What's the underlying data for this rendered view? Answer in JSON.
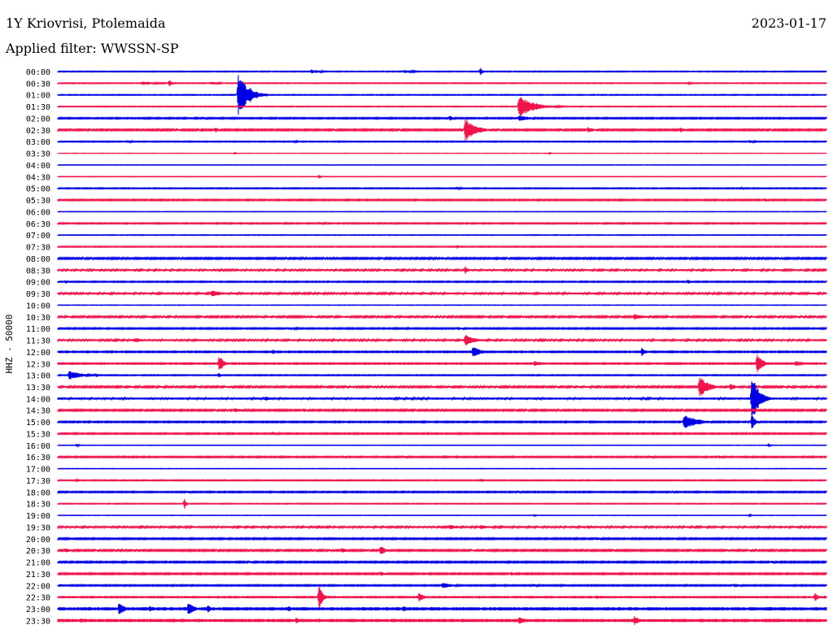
{
  "header": {
    "title": "1Y Kriovrisi, Ptolemaida",
    "date": "2023-01-17",
    "filter": "Applied filter: WWSSN-SP",
    "channel": "HHZ - 50000"
  },
  "colors": {
    "odd_trace": "#0000e6",
    "even_trace": "#f0144b",
    "text": "#000000",
    "background": "#ffffff"
  },
  "chart_data": {
    "type": "helicorder",
    "channel": "HHZ",
    "scale": 50000,
    "x_span_minutes": 30,
    "rows": [
      {
        "label": "00:00",
        "noise": 0.5,
        "events": [
          [
            33,
            2.5,
            12
          ],
          [
            45,
            2.0,
            14
          ],
          [
            55,
            6.0,
            2
          ]
        ]
      },
      {
        "label": "00:30",
        "noise": 0.5,
        "events": [
          [
            11,
            2.5,
            18
          ],
          [
            14.5,
            4.0,
            4
          ],
          [
            20,
            2.0,
            10
          ],
          [
            82,
            1.5,
            6
          ]
        ]
      },
      {
        "label": "01:00",
        "noise": 0.5,
        "events": [
          [
            23.5,
            26.0,
            12
          ],
          [
            25,
            10.0,
            6
          ]
        ]
      },
      {
        "label": "01:30",
        "noise": 0.5,
        "events": [
          [
            60,
            13.0,
            18
          ]
        ]
      },
      {
        "label": "02:00",
        "noise": 0.8,
        "events": [
          [
            19,
            2.0,
            6
          ],
          [
            51,
            3.0,
            6
          ],
          [
            60,
            3.5,
            16
          ]
        ]
      },
      {
        "label": "02:30",
        "noise": 1.0,
        "events": [
          [
            20.5,
            4.0,
            4
          ],
          [
            36,
            2.0,
            2
          ],
          [
            53,
            15.0,
            12
          ],
          [
            69,
            3.5,
            8
          ],
          [
            81,
            3.0,
            8
          ]
        ]
      },
      {
        "label": "03:00",
        "noise": 0.6,
        "events": [
          [
            9,
            2.0,
            6
          ],
          [
            31,
            1.5,
            4
          ],
          [
            90,
            2.0,
            8
          ]
        ]
      },
      {
        "label": "03:30",
        "noise": 0.2,
        "events": [
          [
            23,
            1.0,
            2
          ],
          [
            64,
            1.0,
            2
          ]
        ]
      },
      {
        "label": "04:00",
        "noise": 0.3,
        "events": []
      },
      {
        "label": "04:30",
        "noise": 0.3,
        "events": [
          [
            34,
            2.5,
            2
          ]
        ]
      },
      {
        "label": "05:00",
        "noise": 0.6,
        "events": [
          [
            52,
            1.5,
            8
          ],
          [
            89,
            1.5,
            6
          ]
        ]
      },
      {
        "label": "05:30",
        "noise": 0.8,
        "events": [
          [
            92,
            2.5,
            6
          ]
        ]
      },
      {
        "label": "06:00",
        "noise": 0.3,
        "events": []
      },
      {
        "label": "06:30",
        "noise": 0.7,
        "events": [
          [
            34,
            2.0,
            8
          ]
        ]
      },
      {
        "label": "07:00",
        "noise": 0.4,
        "events": []
      },
      {
        "label": "07:30",
        "noise": 0.6,
        "events": [
          [
            52,
            1.5,
            2
          ]
        ]
      },
      {
        "label": "08:00",
        "noise": 1.0,
        "events": [
          [
            50,
            2.0,
            6
          ]
        ]
      },
      {
        "label": "08:30",
        "noise": 1.2,
        "events": [
          [
            53,
            5.0,
            4
          ]
        ]
      },
      {
        "label": "09:00",
        "noise": 0.7,
        "events": [
          [
            1,
            2.0,
            2
          ],
          [
            82,
            2.5,
            4
          ]
        ]
      },
      {
        "label": "09:30",
        "noise": 1.2,
        "events": [
          [
            20,
            4.0,
            14
          ],
          [
            75,
            2.0,
            6
          ]
        ]
      },
      {
        "label": "10:00",
        "noise": 0.3,
        "events": []
      },
      {
        "label": "10:30",
        "noise": 1.1,
        "events": [
          [
            75,
            3.5,
            14
          ]
        ]
      },
      {
        "label": "11:00",
        "noise": 0.8,
        "events": [
          [
            30,
            2.0,
            14
          ],
          [
            52,
            2.0,
            10
          ]
        ]
      },
      {
        "label": "11:30",
        "noise": 1.2,
        "events": [
          [
            10,
            3.0,
            14
          ],
          [
            53,
            8.0,
            10
          ]
        ]
      },
      {
        "label": "12:00",
        "noise": 1.6,
        "events": [
          [
            18,
            2.0,
            10
          ],
          [
            28,
            3.0,
            4
          ],
          [
            54,
            7.0,
            10
          ],
          [
            76,
            6.0,
            4
          ]
        ]
      },
      {
        "label": "12:30",
        "noise": 1.6,
        "events": [
          [
            21,
            10.0,
            6
          ],
          [
            62,
            3.0,
            14
          ],
          [
            91,
            14.0,
            6
          ],
          [
            96,
            4.0,
            10
          ]
        ]
      },
      {
        "label": "13:00",
        "noise": 0.6,
        "events": [
          [
            1.5,
            6.0,
            14
          ],
          [
            5,
            3.0,
            2
          ],
          [
            21,
            4.0,
            2
          ]
        ]
      },
      {
        "label": "13:30",
        "noise": 1.1,
        "events": [
          [
            83.5,
            14.0,
            10
          ],
          [
            87.5,
            5.0,
            6
          ]
        ]
      },
      {
        "label": "14:00",
        "noise": 1.3,
        "events": [
          [
            27,
            3.0,
            10
          ],
          [
            47,
            2.0,
            6
          ],
          [
            90.3,
            32.0,
            8
          ]
        ]
      },
      {
        "label": "14:30",
        "noise": 1.0,
        "events": [
          [
            23,
            3.0,
            10
          ],
          [
            32,
            2.5,
            8
          ]
        ]
      },
      {
        "label": "15:00",
        "noise": 0.8,
        "events": [
          [
            81.5,
            9.0,
            16
          ],
          [
            90.3,
            10.0,
            4
          ]
        ]
      },
      {
        "label": "15:30",
        "noise": 0.8,
        "events": [
          [
            28,
            2.0,
            10
          ]
        ]
      },
      {
        "label": "16:00",
        "noise": 0.3,
        "events": [
          [
            2.5,
            3.0,
            2
          ],
          [
            92.5,
            2.5,
            2
          ]
        ]
      },
      {
        "label": "16:30",
        "noise": 0.8,
        "events": [
          [
            37,
            2.0,
            6
          ],
          [
            45,
            2.0,
            6
          ],
          [
            77,
            2.0,
            8
          ],
          [
            86,
            2.0,
            8
          ]
        ]
      },
      {
        "label": "17:00",
        "noise": 0.3,
        "events": []
      },
      {
        "label": "17:30",
        "noise": 0.6,
        "events": [
          [
            2.5,
            2.0,
            2
          ],
          [
            55,
            1.5,
            4
          ]
        ]
      },
      {
        "label": "18:00",
        "noise": 0.8,
        "events": [
          [
            17,
            2.0,
            4
          ],
          [
            60,
            1.5,
            6
          ],
          [
            80,
            1.5,
            4
          ]
        ]
      },
      {
        "label": "18:30",
        "noise": 0.5,
        "events": [
          [
            16.5,
            8.0,
            2
          ]
        ]
      },
      {
        "label": "19:00",
        "noise": 0.3,
        "events": [
          [
            62,
            1.5,
            2
          ],
          [
            90,
            1.5,
            2
          ]
        ]
      },
      {
        "label": "19:30",
        "noise": 1.2,
        "events": [
          [
            51,
            3.0,
            14
          ],
          [
            55,
            3.0,
            8
          ],
          [
            69,
            2.0,
            6
          ],
          [
            94,
            2.0,
            4
          ]
        ]
      },
      {
        "label": "20:00",
        "noise": 0.9,
        "events": [
          [
            70,
            2.5,
            10
          ]
        ]
      },
      {
        "label": "20:30",
        "noise": 1.0,
        "events": [
          [
            1,
            3.0,
            8
          ],
          [
            37,
            3.0,
            8
          ],
          [
            42,
            6.0,
            6
          ]
        ]
      },
      {
        "label": "21:00",
        "noise": 0.9,
        "events": [
          [
            25,
            2.0,
            8
          ],
          [
            93,
            2.5,
            4
          ]
        ]
      },
      {
        "label": "21:30",
        "noise": 0.9,
        "events": [
          [
            42,
            3.0,
            6
          ],
          [
            59,
            2.5,
            4
          ]
        ]
      },
      {
        "label": "22:00",
        "noise": 0.8,
        "events": [
          [
            50,
            3.5,
            14
          ],
          [
            62,
            2.0,
            6
          ],
          [
            88,
            2.5,
            10
          ]
        ]
      },
      {
        "label": "22:30",
        "noise": 1.5,
        "events": [
          [
            34,
            18.0,
            4
          ],
          [
            47,
            6.0,
            6
          ],
          [
            70,
            2.5,
            8
          ],
          [
            98.5,
            6.0,
            4
          ]
        ]
      },
      {
        "label": "23:00",
        "noise": 2.0,
        "events": [
          [
            8,
            9.0,
            6
          ],
          [
            12,
            4.0,
            4
          ],
          [
            17,
            10.0,
            6
          ],
          [
            19.5,
            5.0,
            4
          ],
          [
            30,
            3.5,
            8
          ],
          [
            45,
            3.5,
            8
          ]
        ]
      },
      {
        "label": "23:30",
        "noise": 2.0,
        "events": [
          [
            3,
            3.0,
            4
          ],
          [
            15,
            3.0,
            6
          ],
          [
            31,
            4.0,
            8
          ],
          [
            60,
            5.0,
            10
          ],
          [
            75,
            6.0,
            6
          ]
        ]
      }
    ]
  }
}
